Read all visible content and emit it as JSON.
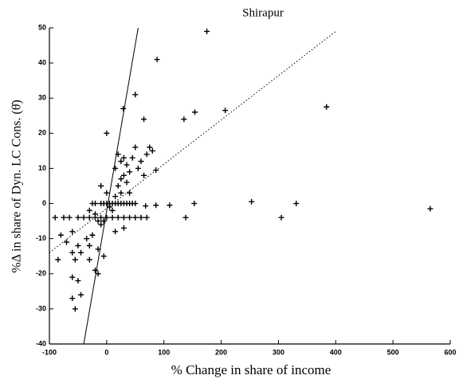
{
  "chart_data": {
    "type": "scatter",
    "title": "Shirapur",
    "x_label": "% Change in share of income",
    "y_label": "%Δ in share of Dyn. LC Cons. (θ̇)",
    "xlim": [
      -100,
      600
    ],
    "ylim": [
      -40,
      50
    ],
    "xticks": [
      -100,
      0,
      100,
      200,
      300,
      400,
      500,
      600
    ],
    "yticks": [
      -40,
      -30,
      -20,
      -10,
      0,
      10,
      20,
      30,
      40,
      50
    ],
    "color": "#000000",
    "x": [
      175,
      88,
      384,
      207,
      50,
      29,
      154,
      135,
      65,
      0,
      86,
      253,
      153,
      331,
      305,
      565,
      138,
      110,
      86,
      68,
      -45,
      -55,
      -60,
      -50,
      -60,
      -15,
      -20,
      -30,
      -35,
      -50,
      -45,
      -60,
      -55,
      -85,
      -70,
      -80,
      -60,
      -65,
      -90,
      -75,
      -50,
      -40,
      -30,
      -20,
      -10,
      0,
      10,
      20,
      30,
      40,
      50,
      60,
      70,
      -30,
      -20,
      -15,
      -10,
      -5,
      -25,
      -20,
      -10,
      -5,
      0,
      5,
      10,
      15,
      20,
      25,
      30,
      35,
      40,
      45,
      50,
      5,
      10,
      15,
      -25,
      -15,
      -5,
      -30,
      20,
      25,
      15,
      20,
      25,
      30,
      35,
      40,
      30,
      35,
      45,
      50,
      55,
      60,
      65,
      70,
      75,
      80,
      40,
      15,
      25,
      30,
      -10,
      0
    ],
    "y": [
      49,
      41,
      27.5,
      26.5,
      31,
      27,
      26,
      24,
      24,
      20,
      9.5,
      0.5,
      0,
      0,
      -4,
      -1.5,
      -4,
      -0.5,
      -0.5,
      -0.7,
      -26,
      -30,
      -27,
      -22,
      -21,
      -20,
      -19,
      -12,
      -10,
      -12,
      -14,
      -14,
      -16,
      -16,
      -11,
      -9,
      -8,
      -4,
      -4,
      -4,
      -4,
      -4,
      -4,
      -4,
      -4,
      -4,
      -4,
      -4,
      -4,
      -4,
      -4,
      -4,
      -4,
      -2,
      -3,
      -5,
      -6,
      -5,
      0,
      0,
      0,
      0,
      0,
      0,
      0,
      0,
      0,
      0,
      0,
      0,
      0,
      0,
      0,
      -1,
      -2,
      -8,
      -9,
      -13,
      -15,
      -16,
      5,
      7,
      10,
      14,
      12,
      13,
      11,
      9,
      8,
      6,
      13,
      16,
      10,
      12,
      8,
      14,
      16,
      15,
      3,
      2,
      3,
      -7,
      5,
      3
    ],
    "reference_lines": [
      {
        "style": "solid",
        "x": [
          -40,
          55
        ],
        "y": [
          -40,
          50
        ]
      },
      {
        "style": "dotted",
        "x": [
          -100,
          400
        ],
        "y": [
          -14,
          49
        ]
      }
    ]
  }
}
